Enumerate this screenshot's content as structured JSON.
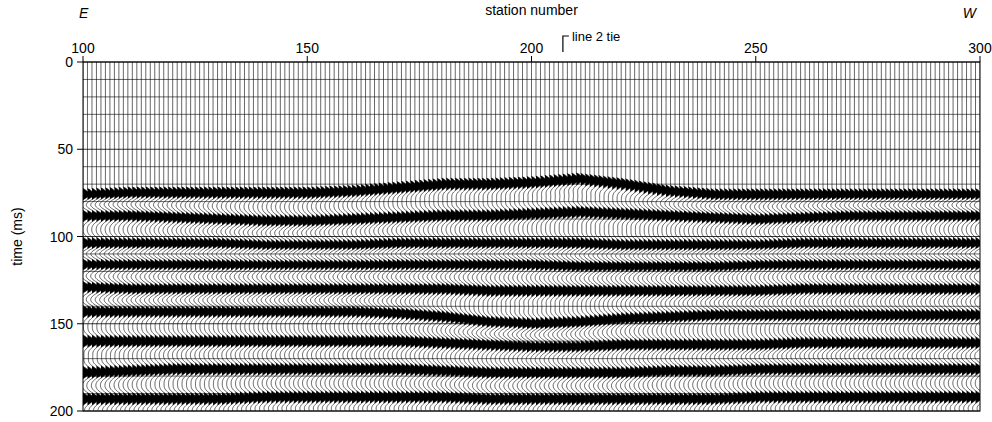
{
  "chart_data": {
    "type": "seismic_section",
    "x_label": "station number",
    "y_label": "time (ms)",
    "left_label": "E",
    "right_label": "W",
    "annotations": [
      {
        "text": "line 2 tie",
        "x": 207
      }
    ],
    "xlim": [
      100,
      300
    ],
    "xticks": [
      100,
      150,
      200,
      250,
      300
    ],
    "ylim": [
      0,
      200
    ],
    "yticks": [
      0,
      50,
      100,
      150,
      200
    ],
    "grid": true,
    "x": [
      100,
      110,
      120,
      130,
      140,
      150,
      160,
      170,
      180,
      190,
      200,
      210,
      220,
      230,
      240,
      250,
      260,
      270,
      280,
      290,
      300
    ],
    "series": [
      {
        "type": "first_break",
        "values": [
          73,
          72,
          72,
          72,
          72,
          72,
          71,
          69,
          67,
          67,
          66,
          64,
          67,
          71,
          73,
          73,
          73,
          73,
          73,
          73,
          73
        ]
      },
      {
        "type": "reflector",
        "values": [
          88,
          88,
          89,
          90,
          91,
          91,
          90,
          89,
          88,
          88,
          87,
          86,
          87,
          88,
          89,
          90,
          89,
          88,
          88,
          88,
          88
        ]
      },
      {
        "type": "reflector",
        "values": [
          104,
          104,
          104,
          104,
          105,
          105,
          105,
          104,
          104,
          104,
          104,
          104,
          105,
          105,
          105,
          105,
          104,
          104,
          104,
          104,
          104
        ]
      },
      {
        "type": "reflector",
        "values": [
          116,
          116,
          116,
          116,
          116,
          116,
          116,
          116,
          116,
          116,
          116,
          117,
          117,
          117,
          117,
          116,
          116,
          116,
          116,
          116,
          116
        ]
      },
      {
        "type": "reflector",
        "values": [
          129,
          130,
          130,
          130,
          130,
          130,
          130,
          130,
          130,
          131,
          131,
          131,
          131,
          131,
          131,
          131,
          130,
          130,
          130,
          130,
          130
        ]
      },
      {
        "type": "reflector",
        "values": [
          143,
          143,
          143,
          143,
          143,
          143,
          143,
          144,
          146,
          149,
          150,
          149,
          147,
          146,
          145,
          145,
          145,
          145,
          145,
          145,
          145
        ]
      },
      {
        "type": "reflector",
        "values": [
          160,
          160,
          160,
          160,
          160,
          160,
          160,
          160,
          161,
          162,
          163,
          163,
          162,
          162,
          162,
          162,
          161,
          161,
          161,
          161,
          161
        ]
      },
      {
        "type": "reflector",
        "values": [
          178,
          177,
          176,
          176,
          176,
          176,
          176,
          176,
          177,
          178,
          178,
          178,
          178,
          177,
          177,
          176,
          176,
          176,
          176,
          176,
          176
        ]
      },
      {
        "type": "reflector",
        "values": [
          193,
          193,
          193,
          193,
          192,
          192,
          192,
          192,
          192,
          193,
          193,
          193,
          193,
          193,
          193,
          192,
          192,
          192,
          192,
          192,
          192
        ]
      }
    ]
  }
}
